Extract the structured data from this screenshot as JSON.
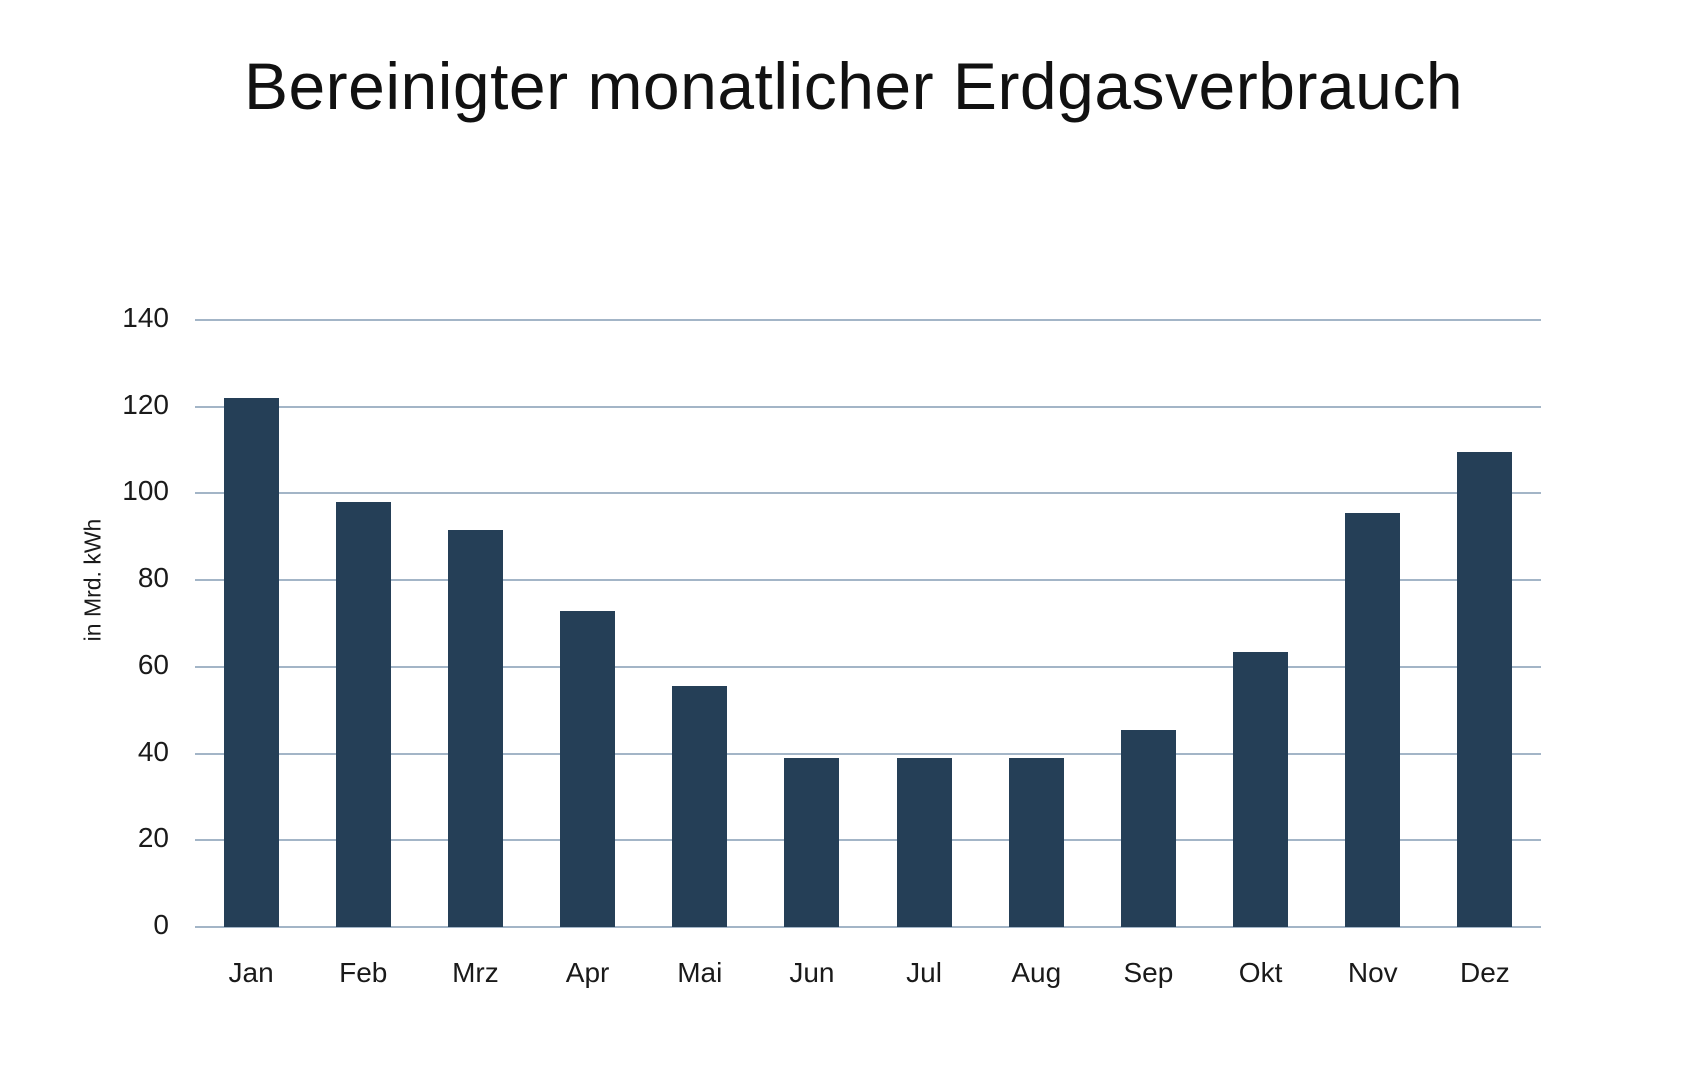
{
  "header": {
    "title": "Bereinigter monatlicher Erdgasverbrauch"
  },
  "chart_data": {
    "type": "bar",
    "title": "Bereinigter monatlicher Erdgasverbrauch",
    "categories": [
      "Jan",
      "Feb",
      "Mrz",
      "Apr",
      "Mai",
      "Jun",
      "Jul",
      "Aug",
      "Sep",
      "Okt",
      "Nov",
      "Dez"
    ],
    "values": [
      122,
      98,
      91.5,
      73,
      55.5,
      39,
      39,
      39,
      45.5,
      63.5,
      95.5,
      109.5
    ],
    "xlabel": "",
    "ylabel": "in Mrd. kWh",
    "ylim": [
      0,
      140
    ],
    "yticks": [
      0,
      20,
      40,
      60,
      80,
      100,
      120,
      140
    ],
    "grid": true,
    "legend_position": "none",
    "colors": {
      "bar": "#253f57",
      "gridline": "#a3b5c7",
      "text": "#1a1a1a",
      "background": "#ffffff"
    }
  }
}
